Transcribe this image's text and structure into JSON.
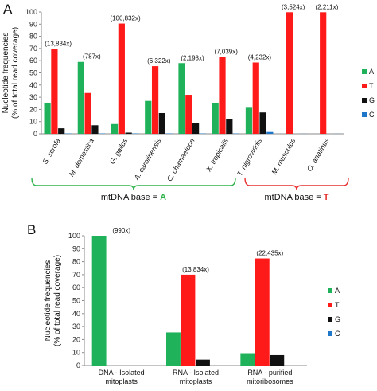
{
  "colors": {
    "A": "#1fb25a",
    "T": "#ff1a1a",
    "G": "#111111",
    "C": "#1f77c9",
    "bracketA": "#2db34a",
    "bracketT": "#e8302f"
  },
  "chart_data": [
    {
      "panel": "A",
      "type": "bar",
      "ylabel": [
        "Nucleotide frequencies",
        "(% of total read coverage)"
      ],
      "ylim": [
        0,
        100
      ],
      "yticks": [
        0,
        10,
        20,
        30,
        40,
        50,
        60,
        70,
        80,
        90,
        100
      ],
      "categories": [
        "S. scrofa",
        "M. domestica",
        "G. gallus",
        "A. carolinensis",
        "C. chamaeleon",
        "X. tropicalis",
        "T. nigroviridis",
        "M. musculus",
        "O. anatinus"
      ],
      "annotations": [
        "(13,834x)",
        "(787x)",
        "(100,832x)",
        "(6,322x)",
        "(2,193x)",
        "(7,039x)",
        "(4,232x)",
        "(3,524x)",
        "(2,211x)"
      ],
      "series": [
        {
          "name": "A",
          "values": [
            25.5,
            59,
            8,
            27,
            58,
            25.5,
            22,
            0,
            0
          ]
        },
        {
          "name": "T",
          "values": [
            69.5,
            33.5,
            90.5,
            55.5,
            32,
            63,
            58.5,
            99.8,
            99.8
          ]
        },
        {
          "name": "G",
          "values": [
            4.5,
            7,
            1,
            17,
            8.5,
            12,
            17.5,
            0,
            0
          ]
        },
        {
          "name": "C",
          "values": [
            0.3,
            0.3,
            0.3,
            0.3,
            0.3,
            0.3,
            1.5,
            0.1,
            0.1
          ]
        }
      ],
      "legend": [
        "A",
        "T",
        "G",
        "C"
      ],
      "groups": [
        {
          "label_prefix": "mtDNA base = ",
          "label_base": "A",
          "start": 0,
          "end": 6
        },
        {
          "label_prefix": "mtDNA base = ",
          "label_base": "T",
          "start": 7,
          "end": 8
        }
      ]
    },
    {
      "panel": "B",
      "type": "bar",
      "ylabel": [
        "Nucleotide frequencies",
        "(% of total read coverage)"
      ],
      "ylim": [
        0,
        100
      ],
      "yticks": [
        0,
        10,
        20,
        30,
        40,
        50,
        60,
        70,
        80,
        90,
        100
      ],
      "categories": [
        [
          "DNA - Isolated",
          "mitoplasts"
        ],
        [
          "RNA - Isolated",
          "mitoplasts"
        ],
        [
          "RNA - purified",
          "mitoribosomes"
        ]
      ],
      "annotations": [
        "(990x)",
        "(13,834x)",
        "(22,435x)"
      ],
      "series": [
        {
          "name": "A",
          "values": [
            100,
            25.5,
            9.5
          ]
        },
        {
          "name": "T",
          "values": [
            0,
            70,
            82.5
          ]
        },
        {
          "name": "G",
          "values": [
            0,
            4.5,
            8
          ]
        },
        {
          "name": "C",
          "values": [
            0,
            0,
            0
          ]
        }
      ],
      "legend": [
        "A",
        "T",
        "G",
        "C"
      ]
    }
  ]
}
